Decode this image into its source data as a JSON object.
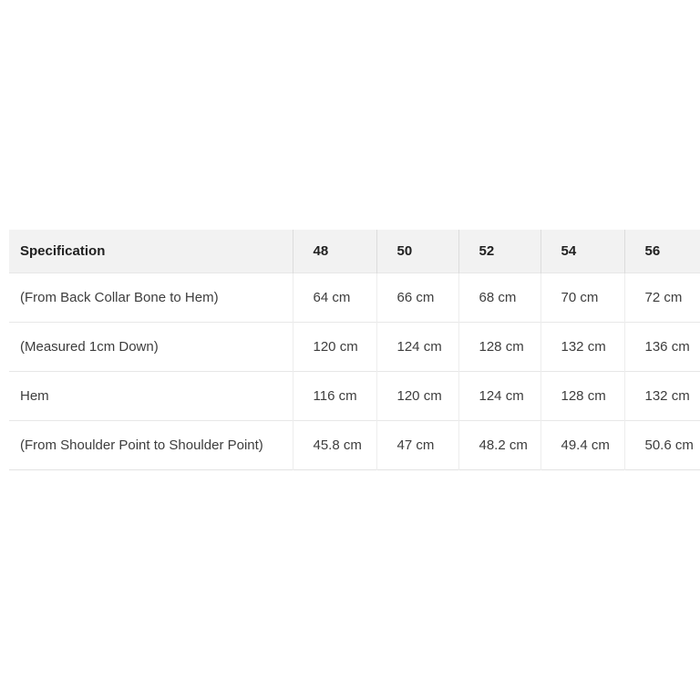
{
  "table": {
    "columns": [
      "Specification",
      "48",
      "50",
      "52",
      "54",
      "56"
    ],
    "rows": [
      {
        "label": "(From Back Collar Bone to Hem)",
        "values": [
          "64 cm",
          "66 cm",
          "68 cm",
          "70 cm",
          "72 cm"
        ]
      },
      {
        "label": "(Measured 1cm Down)",
        "values": [
          "120 cm",
          "124 cm",
          "128 cm",
          "132 cm",
          "136 cm"
        ]
      },
      {
        "label": "Hem",
        "values": [
          "116 cm",
          "120 cm",
          "124 cm",
          "128 cm",
          "132 cm"
        ]
      },
      {
        "label": "(From Shoulder Point to Shoulder Point)",
        "values": [
          "45.8 cm",
          "47 cm",
          "48.2 cm",
          "49.4 cm",
          "50.6 cm"
        ]
      }
    ]
  },
  "colors": {
    "header_bg": "#f2f2f2",
    "border": "#e7e7e7",
    "header_text": "#212121",
    "body_text": "#3d3d3d"
  }
}
